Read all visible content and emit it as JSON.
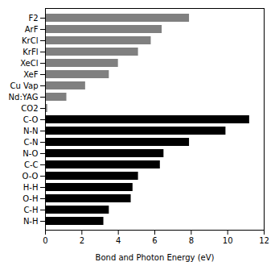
{
  "chart_data": {
    "type": "bar",
    "orientation": "horizontal",
    "categories": [
      "F2",
      "ArF",
      "KrCl",
      "KrFl",
      "XeCl",
      "XeF",
      "Cu Vap",
      "Nd:YAG",
      "CO2",
      "C-O",
      "N-N",
      "C-N",
      "N-O",
      "C-C",
      "O-O",
      "H-H",
      "O-H",
      "C-H",
      "N-H"
    ],
    "values": [
      7.9,
      6.4,
      5.8,
      5.1,
      4.0,
      3.5,
      2.2,
      1.17,
      0.12,
      11.2,
      9.9,
      7.9,
      6.5,
      6.3,
      5.1,
      4.8,
      4.7,
      3.5,
      3.2
    ],
    "colors": [
      "#808080",
      "#808080",
      "#808080",
      "#808080",
      "#808080",
      "#808080",
      "#808080",
      "#808080",
      "#808080",
      "#000000",
      "#000000",
      "#000000",
      "#000000",
      "#000000",
      "#000000",
      "#000000",
      "#000000",
      "#000000",
      "#000000"
    ],
    "xlabel": "Bond and Photon Energy (eV)",
    "xlim": [
      0,
      12
    ],
    "xticks": [
      0,
      2,
      4,
      6,
      8,
      10,
      12
    ],
    "grid": false
  }
}
